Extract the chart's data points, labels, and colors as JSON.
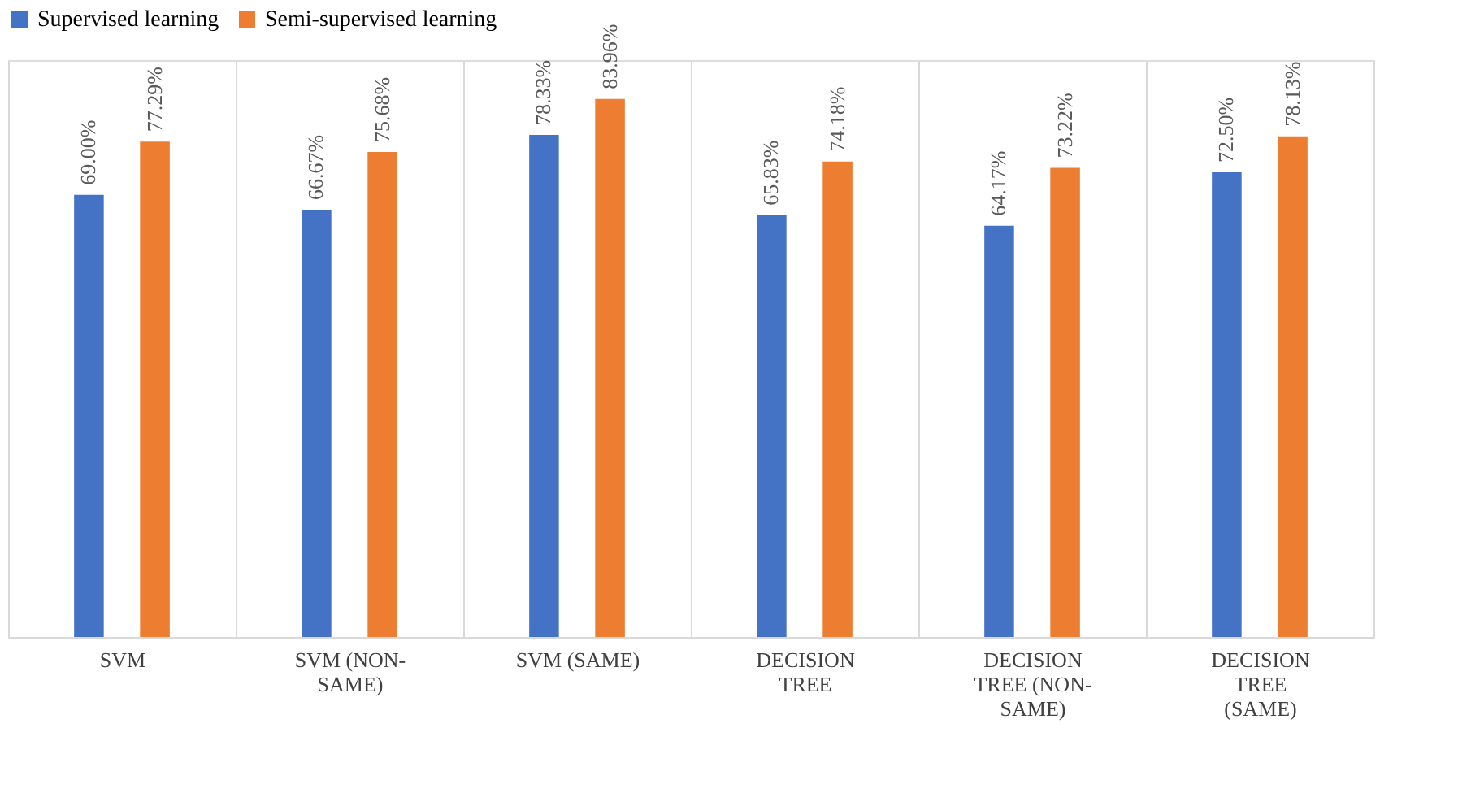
{
  "chart_data": {
    "type": "bar",
    "categories": [
      "SVM",
      "SVM (NON-SAME)",
      "SVM (SAME)",
      "DECISION TREE",
      "DECISION TREE (NON-SAME)",
      "DECISION TREE (SAME)"
    ],
    "series": [
      {
        "name": "Supervised learning",
        "color": "#4472c4",
        "values": [
          69.0,
          66.67,
          78.33,
          65.83,
          64.17,
          72.5
        ],
        "value_labels": [
          "69.00%",
          "66.67%",
          "78.33%",
          "65.83%",
          "64.17%",
          "72.50%"
        ]
      },
      {
        "name": "Semi-supervised learning",
        "color": "#ed7d31",
        "values": [
          77.29,
          75.68,
          83.96,
          74.18,
          73.22,
          78.13
        ],
        "value_labels": [
          "77.29%",
          "75.68%",
          "83.96%",
          "74.18%",
          "73.22%",
          "78.13%"
        ]
      }
    ],
    "ylim": [
      0,
      90
    ],
    "grid": "x",
    "legend": "top",
    "tick_labels": "x"
  }
}
